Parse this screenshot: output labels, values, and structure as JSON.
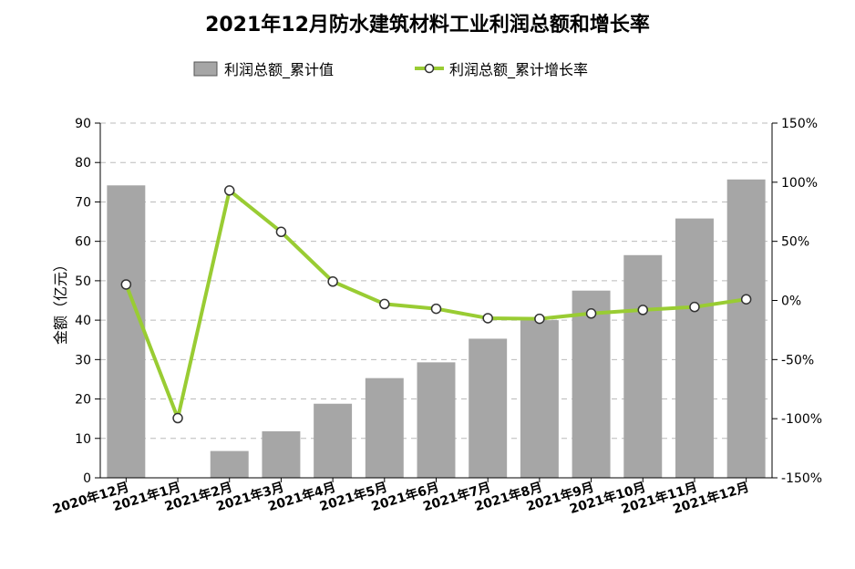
{
  "chart_data": {
    "type": "bar",
    "title": "2021年12月防水建筑材料工业利润总额和增长率",
    "ylabel": "金额（亿元）",
    "y2label": "",
    "categories": [
      "2020年12月",
      "2021年1月",
      "2021年2月",
      "2021年3月",
      "2021年4月",
      "2021年5月",
      "2021年6月",
      "2021年7月",
      "2021年8月",
      "2021年9月",
      "2021年10月",
      "2021年11月",
      "2021年12月"
    ],
    "ylim": [
      0,
      90
    ],
    "y_ticks": [
      "0",
      "10",
      "20",
      "30",
      "40",
      "50",
      "60",
      "70",
      "80",
      "90"
    ],
    "y2lim": [
      -150,
      150
    ],
    "y2_ticks": [
      "-150%",
      "-100%",
      "-50%",
      "0%",
      "50%",
      "100%",
      "150%"
    ],
    "grid": true,
    "legend_position": "top",
    "series": [
      {
        "name": "利润总额_累计值",
        "type": "bar",
        "axis": "left",
        "color": "#a6a6a6",
        "values": [
          74.2,
          null,
          6.8,
          11.8,
          18.8,
          25.3,
          29.3,
          35.3,
          40.0,
          47.5,
          56.5,
          65.8,
          75.7
        ]
      },
      {
        "name": "利润总额_累计增长率",
        "type": "line",
        "axis": "right",
        "color": "#99cc33",
        "values": [
          13.5,
          -99.5,
          93.0,
          58.0,
          16.0,
          -3.0,
          -7.0,
          -15.0,
          -15.5,
          -11.0,
          -8.0,
          -5.5,
          1.0
        ]
      }
    ]
  }
}
